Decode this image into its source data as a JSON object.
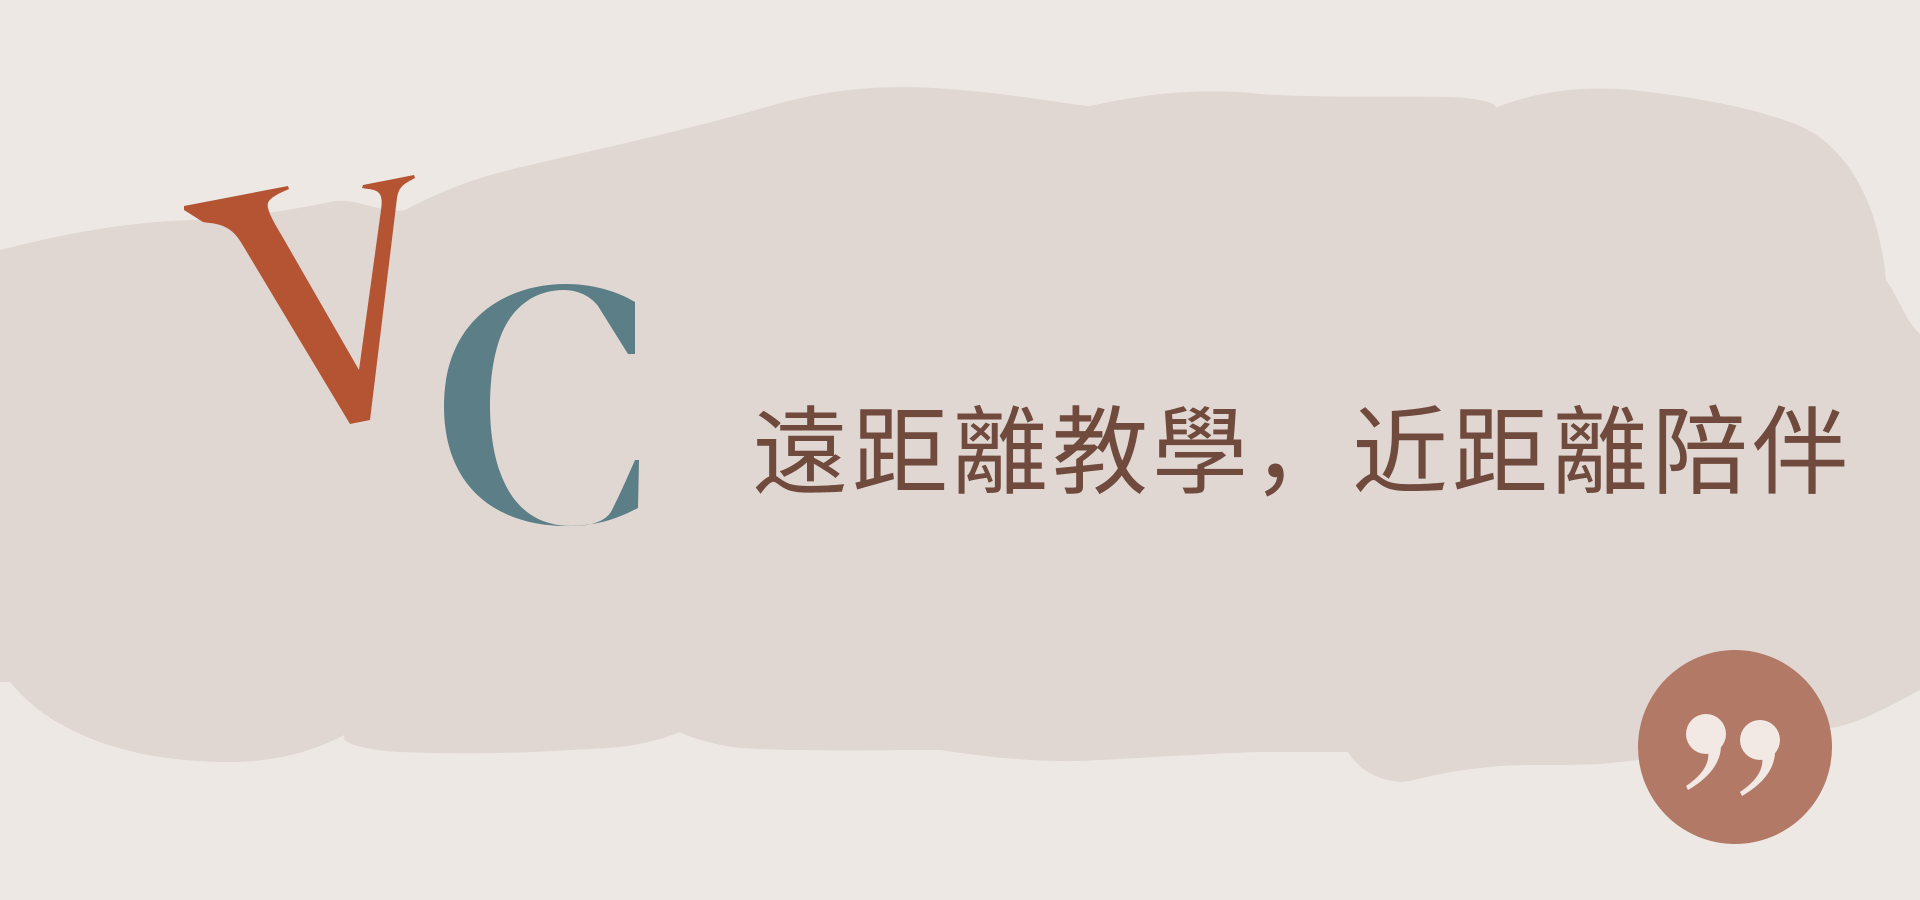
{
  "banner": {
    "tagline": "遠距離教學，近距離陪伴",
    "logo_letters": [
      "V",
      "C"
    ],
    "icons": {
      "quote": "closing-quote-icon"
    },
    "colors": {
      "background": "#EEE8E4",
      "blob": "#E0D7D2",
      "v_letter": "#B45433",
      "c_letter": "#5C7E86",
      "tagline_text": "#6F4A3D",
      "quote_badge": "#B27967",
      "quote_glyph": "#F2E9E5"
    }
  }
}
